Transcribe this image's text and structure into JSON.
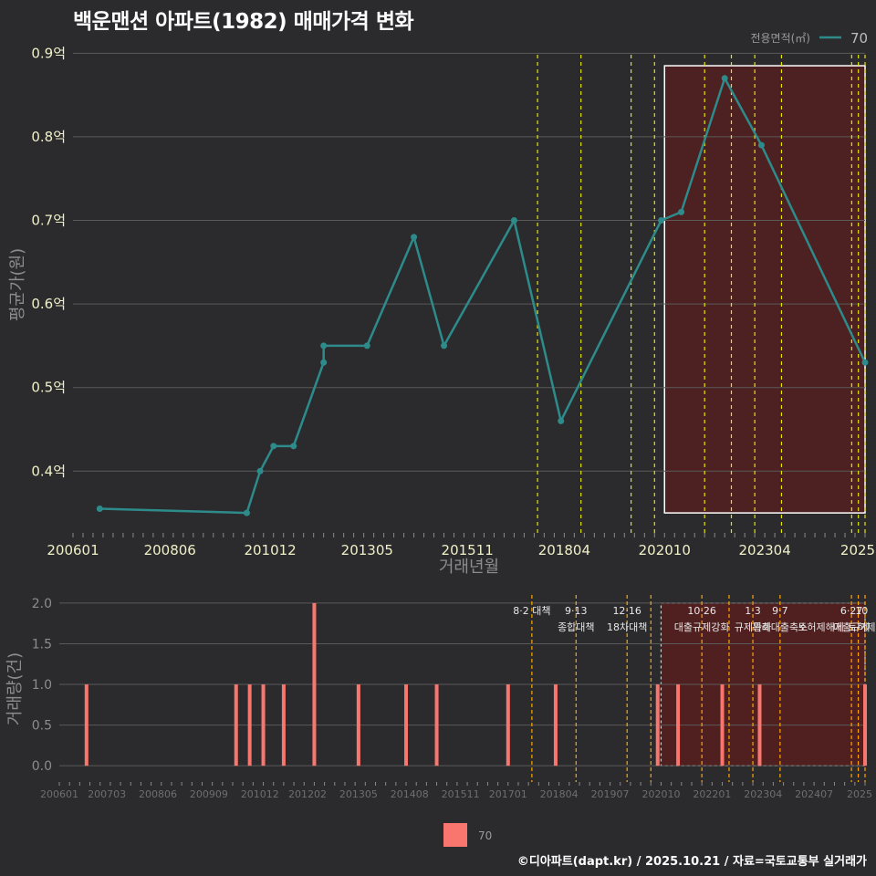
{
  "title": "백운맨션 아파트(1982) 매매가격 변화",
  "credit": "©디아파트(dapt.kr) / 2025.10.21 / 자료=국토교통부 실거래가",
  "colors": {
    "background": "#2b2b2d",
    "line": "#2e8b8b",
    "bar": "#f8766d",
    "vline_top": "#e6e600",
    "vline_bottom": "#ffa500",
    "highlight_fill": "#5a1e1e",
    "grid": "#5a5a5a"
  },
  "chart_data": [
    {
      "type": "line",
      "title": "백운맨션 아파트(1982) 매매가격 변화",
      "xlabel": "거래년월",
      "ylabel": "평균가(원)",
      "legend_title": "전용면적(㎡)",
      "legend_position": "top-right",
      "series": [
        {
          "name": "70",
          "points": [
            {
              "x": "2006-09",
              "y": 0.355
            },
            {
              "x": "2010-05",
              "y": 0.35
            },
            {
              "x": "2010-09",
              "y": 0.4
            },
            {
              "x": "2011-01",
              "y": 0.43
            },
            {
              "x": "2011-07",
              "y": 0.43
            },
            {
              "x": "2012-04",
              "y": 0.53
            },
            {
              "x": "2012-04",
              "y": 0.55
            },
            {
              "x": "2013-05",
              "y": 0.55
            },
            {
              "x": "2014-07",
              "y": 0.68
            },
            {
              "x": "2015-04",
              "y": 0.55
            },
            {
              "x": "2017-01",
              "y": 0.7
            },
            {
              "x": "2018-03",
              "y": 0.46
            },
            {
              "x": "2020-09",
              "y": 0.7
            },
            {
              "x": "2021-03",
              "y": 0.71
            },
            {
              "x": "2022-04",
              "y": 0.87
            },
            {
              "x": "2023-03",
              "y": 0.79
            },
            {
              "x": "2025-10",
              "y": 0.53
            }
          ]
        }
      ],
      "ylim": [
        0.325,
        0.92
      ],
      "yticks": [
        0.4,
        0.5,
        0.6,
        0.7,
        0.8,
        0.9
      ],
      "ytick_labels": [
        "0.4억",
        "0.5억",
        "0.6억",
        "0.7억",
        "0.8억",
        "0.9억"
      ],
      "xlim": [
        "2006-01",
        "2025-10"
      ],
      "xticks": [
        "2006-01",
        "2008-06",
        "2010-12",
        "2013-05",
        "2015-11",
        "2018-04",
        "2020-10",
        "2023-04",
        "2025-10"
      ],
      "xtick_labels": [
        "200601",
        "200806",
        "201012",
        "201305",
        "201511",
        "201804",
        "202010",
        "202304",
        "2025"
      ],
      "vlines": [
        "2017-08",
        "2018-09",
        "2019-12",
        "2020-07",
        "2021-10",
        "2022-06",
        "2023-01",
        "2023-09",
        "2025-06",
        "2025-08",
        "2025-10"
      ],
      "highlight": {
        "from": "2020-10",
        "to": "2025-10",
        "ymin": 0.35,
        "ymax": 0.885
      }
    },
    {
      "type": "bar",
      "xlabel": "",
      "ylabel": "거래량(건)",
      "legend_position": "bottom",
      "series": [
        {
          "name": "70",
          "points": [
            {
              "x": "2006-09",
              "y": 1
            },
            {
              "x": "2010-05",
              "y": 1
            },
            {
              "x": "2010-09",
              "y": 1
            },
            {
              "x": "2011-01",
              "y": 1
            },
            {
              "x": "2011-07",
              "y": 1
            },
            {
              "x": "2012-04",
              "y": 2
            },
            {
              "x": "2013-05",
              "y": 1
            },
            {
              "x": "2014-07",
              "y": 1
            },
            {
              "x": "2015-04",
              "y": 1
            },
            {
              "x": "2017-01",
              "y": 1
            },
            {
              "x": "2018-03",
              "y": 1
            },
            {
              "x": "2020-09",
              "y": 1
            },
            {
              "x": "2021-03",
              "y": 1
            },
            {
              "x": "2022-04",
              "y": 1
            },
            {
              "x": "2023-03",
              "y": 1
            },
            {
              "x": "2025-10",
              "y": 1
            }
          ]
        }
      ],
      "ylim": [
        -0.2,
        2.1
      ],
      "yticks": [
        0,
        0.5,
        1,
        1.5,
        2
      ],
      "ytick_labels": [
        "0.0",
        "0.5",
        "1.0",
        "1.5",
        "2.0"
      ],
      "xlim": [
        "2006-01",
        "2025-10"
      ],
      "xticks": [
        "2006-01",
        "2007-03",
        "2008-06",
        "2009-09",
        "2010-12",
        "2012-02",
        "2013-05",
        "2014-08",
        "2015-11",
        "2017-01",
        "2018-04",
        "2019-07",
        "2020-10",
        "2022-01",
        "2023-04",
        "2024-07",
        "2025-10"
      ],
      "xtick_labels": [
        "200601",
        "200703",
        "200806",
        "200909",
        "201012",
        "201202",
        "201305",
        "201408",
        "201511",
        "201701",
        "201804",
        "201907",
        "202010",
        "202201",
        "202304",
        "202407",
        "2025"
      ],
      "vlines": [
        "2017-08",
        "2018-09",
        "2019-12",
        "2020-07",
        "2021-10",
        "2022-06",
        "2023-01",
        "2023-09",
        "2025-06",
        "2025-08",
        "2025-10"
      ],
      "highlight": {
        "from": "2020-10",
        "to": "2025-10",
        "ymin": 0,
        "ymax": 2
      },
      "annotations": [
        {
          "x": "2017-08",
          "line1": "8·2 대책",
          "line2": ""
        },
        {
          "x": "2018-09",
          "line1": "9·13",
          "line2": "종합대책"
        },
        {
          "x": "2019-12",
          "line1": "12·16",
          "line2": "18차대책"
        },
        {
          "x": "2021-10",
          "line1": "10·26",
          "line2": "대출규제강화"
        },
        {
          "x": "2023-01",
          "line1": "1·3",
          "line2": "규제완화"
        },
        {
          "x": "2023-09",
          "line1": "9·7",
          "line2": "특례대출축소"
        },
        {
          "x": "2024-09",
          "line1": "",
          "line2": "토허제해제"
        },
        {
          "x": "2025-06",
          "line1": "6·27",
          "line2": "대출규제"
        },
        {
          "x": "2025-09",
          "line1": "10",
          "line2": "토허제"
        }
      ]
    }
  ]
}
